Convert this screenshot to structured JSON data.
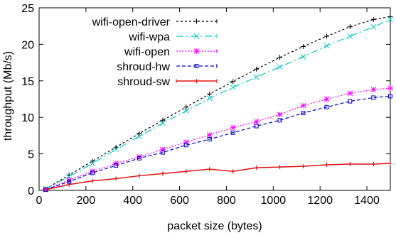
{
  "chart_data": {
    "type": "line",
    "xlabel": "packet size (bytes)",
    "ylabel": "throughput (Mb/s)",
    "xlim": [
      0,
      1500
    ],
    "ylim": [
      0,
      25
    ],
    "xticks": [
      0,
      200,
      400,
      600,
      800,
      1000,
      1200,
      1400
    ],
    "yticks": [
      0,
      5,
      10,
      15,
      20,
      25
    ],
    "grid": false,
    "legend_position": "top-left",
    "x": [
      28,
      128,
      228,
      328,
      428,
      528,
      628,
      728,
      828,
      928,
      1028,
      1128,
      1228,
      1328,
      1428,
      1500
    ],
    "series": [
      {
        "name": "wifi-open-driver",
        "color": "#000000",
        "dash": "3,3",
        "marker": "plus",
        "values": [
          0.2,
          2.1,
          4.0,
          5.9,
          7.8,
          9.6,
          11.4,
          13.2,
          14.9,
          16.6,
          18.2,
          19.7,
          21.1,
          22.4,
          23.4,
          23.8
        ]
      },
      {
        "name": "wifi-wpa",
        "color": "#00cccc",
        "dash": "10,4,2,4",
        "marker": "cross",
        "values": [
          0.2,
          1.9,
          3.7,
          5.6,
          7.4,
          9.2,
          10.9,
          12.6,
          14.1,
          15.5,
          16.9,
          18.3,
          19.8,
          21.1,
          22.4,
          23.4
        ]
      },
      {
        "name": "wifi-open",
        "color": "#ff00ff",
        "dash": "2,2",
        "marker": "star",
        "values": [
          0.1,
          1.4,
          2.6,
          3.7,
          4.6,
          5.6,
          6.6,
          7.6,
          8.6,
          9.4,
          10.4,
          11.6,
          12.5,
          13.3,
          13.8,
          14.0
        ]
      },
      {
        "name": "shroud-hw",
        "color": "#0000cc",
        "dash": "5,3",
        "marker": "square",
        "values": [
          0.1,
          1.2,
          2.4,
          3.4,
          4.4,
          5.2,
          6.2,
          7.0,
          7.9,
          8.8,
          9.6,
          10.6,
          11.4,
          12.2,
          12.7,
          12.9
        ]
      },
      {
        "name": "shroud-sw",
        "color": "#dd1111",
        "dash": "",
        "marker": "bar",
        "values": [
          0.1,
          0.8,
          1.3,
          1.6,
          2.0,
          2.3,
          2.6,
          2.9,
          2.6,
          3.1,
          3.2,
          3.3,
          3.5,
          3.6,
          3.6,
          3.7
        ]
      }
    ]
  }
}
